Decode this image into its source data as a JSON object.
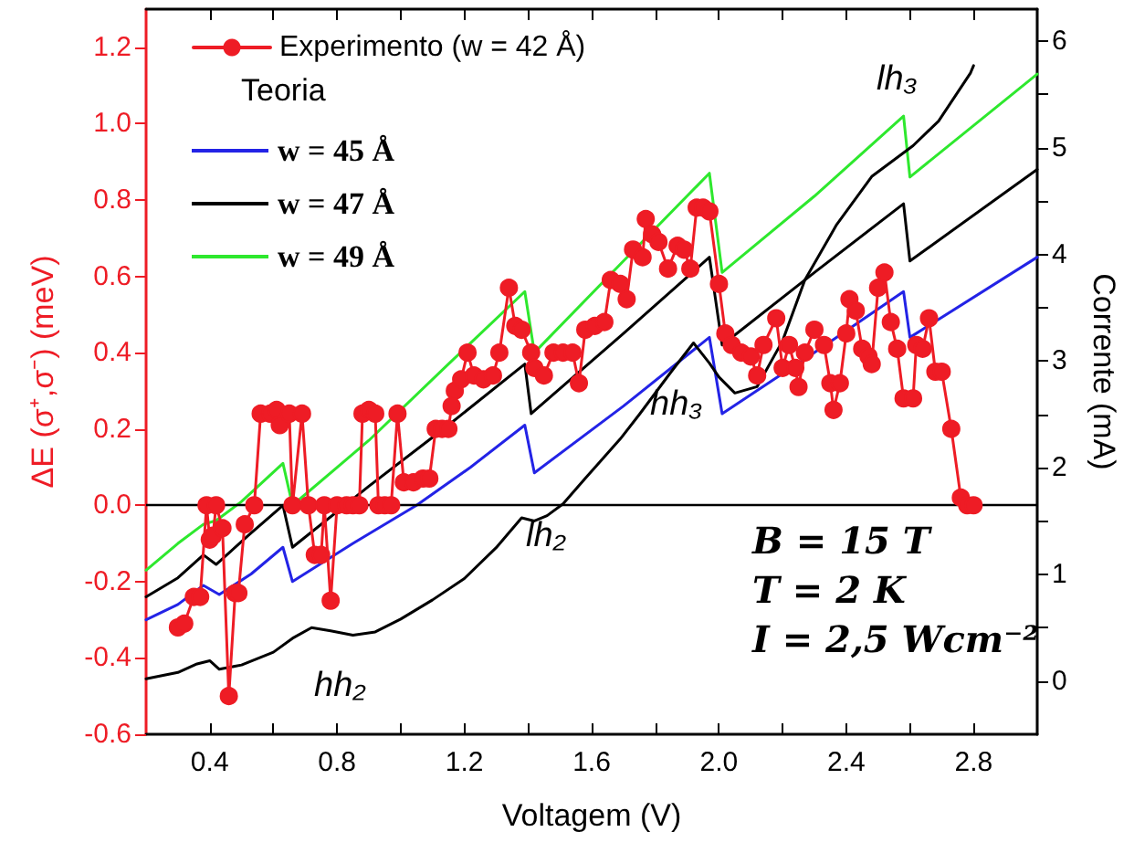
{
  "chart_data": {
    "type": "line",
    "xlabel": "Voltagem (V)",
    "ylabel": "ΔE (σ⁺,σ⁻) (meV)",
    "y2label": "Corrente (mA)",
    "legend_title": "Teoria",
    "legend": "top left",
    "xlim": [
      0.2,
      3.0
    ],
    "xticks": [
      0.4,
      {
        "value": 0.6,
        "label": null
      },
      0.8,
      {
        "value": 1.0,
        "label": null
      },
      1.2,
      {
        "value": 1.4,
        "label": null
      },
      1.6,
      {
        "value": 1.8,
        "label": null
      },
      {
        "value": 2.0,
        "label": "2.0"
      },
      {
        "value": 2.2,
        "label": null
      },
      2.4,
      {
        "value": 2.6,
        "label": null
      },
      2.8
    ],
    "ylim": [
      -0.6,
      1.3
    ],
    "yticks": [
      -0.6,
      -0.4,
      -0.2,
      {
        "value": 0,
        "label": "0.0"
      },
      0.2,
      0.4,
      0.6,
      0.8,
      {
        "value": 1.0,
        "label": "1.0"
      },
      1.2
    ],
    "y2lim": [
      -0.5,
      6.3
    ],
    "y2ticks": [
      0,
      {
        "value": 0.5,
        "label": null
      },
      1,
      {
        "value": 1.5,
        "label": null
      },
      2,
      {
        "value": 2.5,
        "label": null
      },
      3,
      {
        "value": 3.5,
        "label": null
      },
      4,
      {
        "value": 4.5,
        "label": null
      },
      5,
      {
        "value": 5.5,
        "label": null
      },
      6
    ],
    "ref_lines": [
      {
        "axis": "y",
        "value": 0,
        "color": "#000000"
      }
    ],
    "annotations": [
      "lh₃",
      "hh₃",
      "lh₂",
      "hh₂",
      "B = 15 T",
      "T = 2 K",
      "I = 2,5 Wcm⁻²"
    ],
    "series": [
      {
        "name": "Experimento (w = 42 Å)",
        "color": "#ee1c25",
        "marker": "circle",
        "x": [
          0.3,
          0.32,
          0.35,
          0.37,
          0.39,
          0.4,
          0.41,
          0.42,
          0.44,
          0.46,
          0.48,
          0.49,
          0.51,
          0.54,
          0.56,
          0.59,
          0.61,
          0.62,
          0.65,
          0.66,
          0.69,
          0.71,
          0.73,
          0.75,
          0.76,
          0.78,
          0.8,
          0.83,
          0.85,
          0.87,
          0.88,
          0.9,
          0.92,
          0.93,
          0.95,
          0.97,
          0.99,
          1.01,
          1.04,
          1.07,
          1.09,
          1.11,
          1.13,
          1.15,
          1.16,
          1.17,
          1.19,
          1.21,
          1.23,
          1.26,
          1.29,
          1.31,
          1.34,
          1.36,
          1.38,
          1.41,
          1.42,
          1.45,
          1.48,
          1.51,
          1.54,
          1.56,
          1.58,
          1.61,
          1.64,
          1.66,
          1.69,
          1.71,
          1.73,
          1.76,
          1.77,
          1.79,
          1.81,
          1.84,
          1.87,
          1.89,
          1.91,
          1.93,
          1.95,
          1.97,
          2.0,
          2.02,
          2.04,
          2.07,
          2.1,
          2.12,
          2.14,
          2.18,
          2.2,
          2.22,
          2.24,
          2.25,
          2.27,
          2.3,
          2.33,
          2.35,
          2.36,
          2.38,
          2.4,
          2.41,
          2.43,
          2.45,
          2.47,
          2.48,
          2.5,
          2.52,
          2.54,
          2.56,
          2.58,
          2.61,
          2.62,
          2.64,
          2.66,
          2.68,
          2.7,
          2.73,
          2.76,
          2.78,
          2.8
        ],
        "values": [
          -0.32,
          -0.31,
          -0.24,
          -0.24,
          0.0,
          -0.09,
          -0.08,
          0.0,
          -0.06,
          -0.5,
          -0.23,
          -0.23,
          -0.05,
          0.0,
          0.24,
          0.24,
          0.25,
          0.21,
          0.24,
          0.0,
          0.24,
          0.0,
          -0.13,
          -0.13,
          0.0,
          -0.25,
          0.0,
          0.0,
          0.0,
          0.0,
          0.24,
          0.25,
          0.24,
          0.0,
          0.0,
          0.0,
          0.24,
          0.06,
          0.06,
          0.07,
          0.07,
          0.2,
          0.2,
          0.2,
          0.26,
          0.3,
          0.33,
          0.4,
          0.34,
          0.33,
          0.34,
          0.4,
          0.57,
          0.47,
          0.46,
          0.4,
          0.36,
          0.34,
          0.4,
          0.4,
          0.4,
          0.32,
          0.46,
          0.47,
          0.48,
          0.59,
          0.58,
          0.54,
          0.67,
          0.65,
          0.75,
          0.71,
          0.69,
          0.62,
          0.68,
          0.67,
          0.62,
          0.78,
          0.78,
          0.77,
          0.58,
          0.45,
          0.42,
          0.4,
          0.39,
          0.34,
          0.42,
          0.49,
          0.36,
          0.42,
          0.36,
          0.31,
          0.4,
          0.46,
          0.42,
          0.32,
          0.25,
          0.32,
          0.45,
          0.54,
          0.51,
          0.41,
          0.39,
          0.37,
          0.57,
          0.61,
          0.48,
          0.41,
          0.28,
          0.28,
          0.42,
          0.41,
          0.49,
          0.35,
          0.35,
          0.2,
          0.02,
          0.0,
          0.0
        ]
      },
      {
        "name": "w = 45 Å",
        "color": "#2323e6",
        "marker": "none",
        "x": [
          0.2,
          0.3,
          0.38,
          0.43,
          0.53,
          0.63,
          0.66,
          0.85,
          1.05,
          1.22,
          1.39,
          1.42,
          1.7,
          1.97,
          2.01,
          2.3,
          2.58,
          2.6,
          3.0
        ],
        "values": [
          -0.3,
          -0.26,
          -0.21,
          -0.234,
          -0.18,
          -0.11,
          -0.2,
          -0.1,
          0.0,
          0.1,
          0.21,
          0.085,
          0.26,
          0.44,
          0.24,
          0.4,
          0.56,
          0.44,
          0.65
        ]
      },
      {
        "name": "w = 47 Å",
        "color": "#000000",
        "marker": "none",
        "x": [
          0.2,
          0.3,
          0.38,
          0.42,
          0.52,
          0.63,
          0.66,
          0.9,
          1.15,
          1.39,
          1.41,
          1.7,
          1.97,
          2.01,
          2.3,
          2.58,
          2.6,
          3.0
        ],
        "values": [
          -0.24,
          -0.19,
          -0.13,
          -0.155,
          -0.08,
          0.0,
          -0.11,
          0.05,
          0.21,
          0.37,
          0.24,
          0.45,
          0.65,
          0.42,
          0.61,
          0.79,
          0.64,
          0.88
        ]
      },
      {
        "name": "w = 49 Å",
        "color": "#2ee82e",
        "marker": "none",
        "x": [
          0.2,
          0.3,
          0.38,
          0.42,
          0.5,
          0.63,
          0.66,
          0.9,
          1.15,
          1.39,
          1.42,
          1.7,
          1.97,
          2.01,
          2.3,
          2.58,
          2.6,
          3.0
        ],
        "values": [
          -0.17,
          -0.1,
          -0.05,
          -0.04,
          0.01,
          0.11,
          0.0,
          0.17,
          0.37,
          0.56,
          0.4,
          0.64,
          0.87,
          0.61,
          0.81,
          1.02,
          0.86,
          1.13
        ]
      },
      {
        "color": "#000000",
        "marker": "none",
        "axis": "y2",
        "x": [
          0.2,
          0.3,
          0.36,
          0.4,
          0.43,
          0.5,
          0.6,
          0.66,
          0.72,
          0.78,
          0.85,
          0.92,
          1.0,
          1.1,
          1.2,
          1.3,
          1.38,
          1.42,
          1.46,
          1.51,
          1.58,
          1.69,
          1.75,
          1.85,
          1.92,
          1.97,
          2.0,
          2.05,
          2.12,
          2.2,
          2.27,
          2.37,
          2.48,
          2.61,
          2.69,
          2.79,
          2.8
        ],
        "values": [
          0.02,
          0.08,
          0.16,
          0.19,
          0.11,
          0.15,
          0.27,
          0.4,
          0.5,
          0.47,
          0.43,
          0.46,
          0.58,
          0.76,
          0.96,
          1.25,
          1.53,
          1.5,
          1.55,
          1.66,
          1.9,
          2.27,
          2.5,
          2.9,
          3.17,
          2.98,
          2.85,
          2.7,
          2.76,
          3.19,
          3.76,
          4.28,
          4.73,
          5.02,
          5.25,
          5.7,
          5.77
        ]
      }
    ]
  }
}
